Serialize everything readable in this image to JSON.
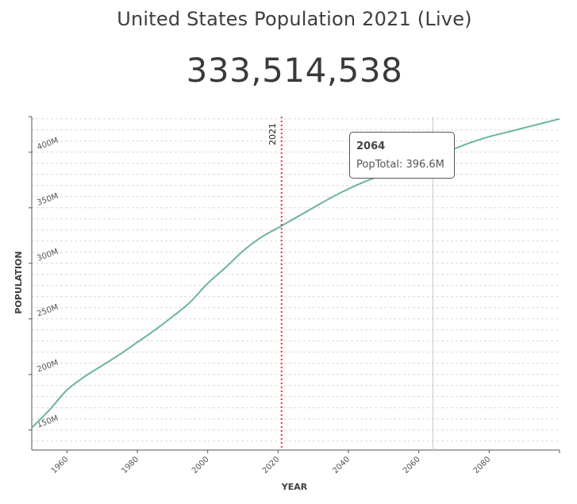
{
  "header": {
    "title": "United States Population 2021 (Live)",
    "counter": "333,514,538"
  },
  "colors": {
    "line": "#6db39b",
    "marker_line": "#e8343a",
    "hover_line": "#c8c8c8",
    "grid": "#d9d9d9",
    "axis": "#555555",
    "text": "#3e3e3e"
  },
  "chart_data": {
    "type": "line",
    "title": "United States Population 2021 (Live)",
    "xlabel": "YEAR",
    "ylabel": "POPULATION",
    "xlim": [
      1950,
      2100
    ],
    "ylim": [
      132000000,
      432000000
    ],
    "x_ticks": [
      1960,
      1980,
      2000,
      2020,
      2040,
      2060,
      2080
    ],
    "y_ticks": [
      150000000,
      200000000,
      250000000,
      300000000,
      350000000,
      400000000
    ],
    "y_tick_labels": [
      "150M",
      "200M",
      "250M",
      "300M",
      "350M",
      "400M"
    ],
    "grid": true,
    "series": [
      {
        "name": "PopTotal",
        "x": [
          1950,
          1955,
          1960,
          1965,
          1970,
          1975,
          1980,
          1985,
          1990,
          1995,
          2000,
          2005,
          2010,
          2015,
          2020,
          2025,
          2030,
          2035,
          2040,
          2045,
          2050,
          2055,
          2060,
          2065,
          2070,
          2075,
          2080,
          2085,
          2090,
          2095,
          2100
        ],
        "y": [
          152000000,
          168000000,
          186000000,
          198000000,
          208000000,
          218000000,
          229000000,
          240000000,
          252000000,
          265000000,
          282000000,
          296000000,
          311000000,
          323000000,
          332000000,
          341000000,
          350000000,
          359000000,
          367000000,
          374000000,
          380000000,
          386000000,
          391000000,
          397000000,
          403000000,
          409000000,
          414000000,
          418000000,
          422000000,
          426000000,
          430000000
        ]
      }
    ],
    "current_year_marker": {
      "x": 2021,
      "label": "2021"
    },
    "hover": {
      "x": 2064,
      "title": "2064",
      "text": "PopTotal: 396.6M"
    }
  }
}
